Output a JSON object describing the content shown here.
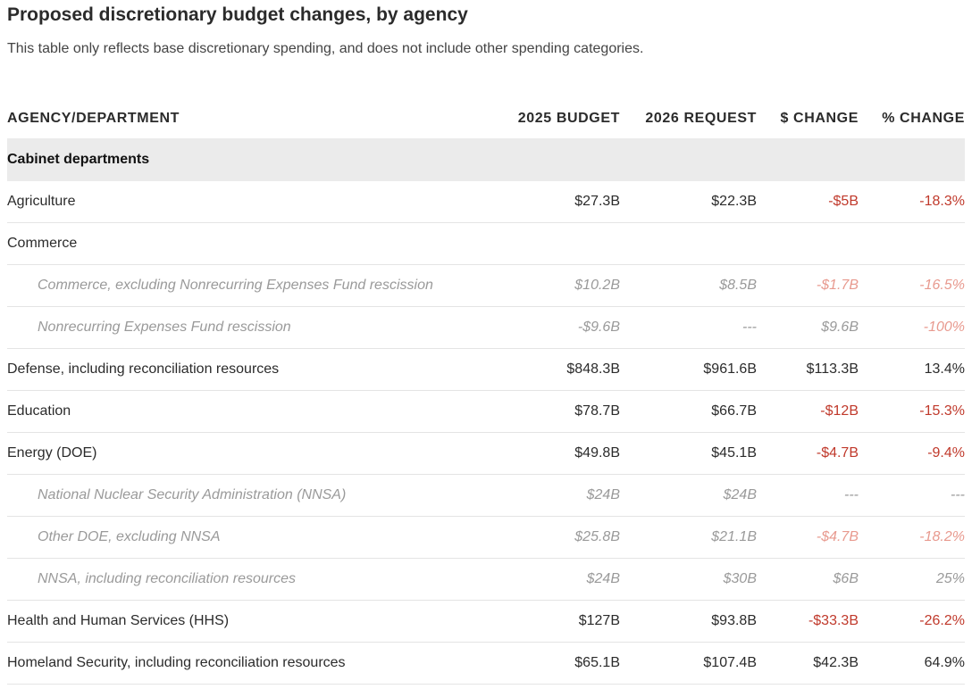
{
  "title": "Proposed discretionary budget changes, by agency",
  "subtitle": "This table only reflects base discretionary spending, and does not include other spending categories.",
  "columns": [
    "AGENCY/DEPARTMENT",
    "2025 BUDGET",
    "2026 REQUEST",
    "$ CHANGE",
    "% CHANGE"
  ],
  "group": "Cabinet departments",
  "rows": [
    {
      "name": "Agriculture",
      "b2025": "$27.3B",
      "r2026": "$22.3B",
      "change": "-$5B",
      "pct": "-18.3%"
    },
    {
      "name": "Commerce",
      "b2025": "",
      "r2026": "",
      "change": "",
      "pct": ""
    },
    {
      "name": "Commerce, excluding Nonrecurring Expenses Fund rescission",
      "b2025": "$10.2B",
      "r2026": "$8.5B",
      "change": "-$1.7B",
      "pct": "-16.5%"
    },
    {
      "name": "Nonrecurring Expenses Fund rescission",
      "b2025": "-$9.6B",
      "r2026": "---",
      "change": "$9.6B",
      "pct": "-100%"
    },
    {
      "name": "Defense, including reconciliation resources",
      "b2025": "$848.3B",
      "r2026": "$961.6B",
      "change": "$113.3B",
      "pct": "13.4%"
    },
    {
      "name": "Education",
      "b2025": "$78.7B",
      "r2026": "$66.7B",
      "change": "-$12B",
      "pct": "-15.3%"
    },
    {
      "name": "Energy (DOE)",
      "b2025": "$49.8B",
      "r2026": "$45.1B",
      "change": "-$4.7B",
      "pct": "-9.4%"
    },
    {
      "name": "National Nuclear Security Administration (NNSA)",
      "b2025": "$24B",
      "r2026": "$24B",
      "change": "---",
      "pct": "---"
    },
    {
      "name": "Other DOE, excluding NNSA",
      "b2025": "$25.8B",
      "r2026": "$21.1B",
      "change": "-$4.7B",
      "pct": "-18.2%"
    },
    {
      "name": "NNSA, including reconciliation resources",
      "b2025": "$24B",
      "r2026": "$30B",
      "change": "$6B",
      "pct": "25%"
    },
    {
      "name": "Health and Human Services (HHS)",
      "b2025": "$127B",
      "r2026": "$93.8B",
      "change": "-$33.3B",
      "pct": "-26.2%"
    },
    {
      "name": "Homeland Security, including reconciliation resources",
      "b2025": "$65.1B",
      "r2026": "$107.4B",
      "change": "$42.3B",
      "pct": "64.9%"
    }
  ]
}
